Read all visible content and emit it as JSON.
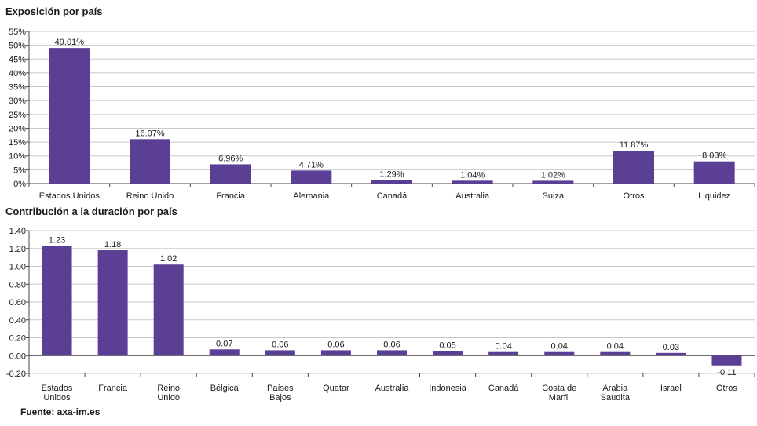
{
  "chart_data": [
    {
      "type": "bar",
      "title": "Exposición por país",
      "categories": [
        "Estados Unidos",
        "Reino Unido",
        "Francia",
        "Alemania",
        "Canadá",
        "Australia",
        "Suiza",
        "Otros",
        "Liquidez"
      ],
      "values": [
        49.01,
        16.07,
        6.96,
        4.71,
        1.29,
        1.04,
        1.02,
        11.87,
        8.03
      ],
      "value_labels": [
        "49.01%",
        "16.07%",
        "6.96%",
        "4.71%",
        "1.29%",
        "1.04%",
        "1.02%",
        "11.87%",
        "8.03%"
      ],
      "ylim": [
        0,
        55
      ],
      "yticks": [
        0,
        5,
        10,
        15,
        20,
        25,
        30,
        35,
        40,
        45,
        50,
        55
      ],
      "ytick_labels": [
        "0%",
        "5%",
        "10%",
        "15%",
        "20%",
        "25%",
        "30%",
        "35%",
        "40%",
        "45%",
        "50%",
        "55%"
      ],
      "grid": true,
      "bar_color": "#5b3f95"
    },
    {
      "type": "bar",
      "title": "Contribución a la duración por país",
      "categories": [
        "Estados Unidos",
        "Francia",
        "Reino Unido",
        "Bélgica",
        "Países Bajos",
        "Quatar",
        "Australia",
        "Indonesia",
        "Canadá",
        "Costa de Marfil",
        "Arabia Saudita",
        "Israel",
        "Otros"
      ],
      "category_lines": [
        [
          "Estados",
          "Unidos"
        ],
        [
          "Francia"
        ],
        [
          "Reino",
          "Unido"
        ],
        [
          "Bélgica"
        ],
        [
          "Países",
          "Bajos"
        ],
        [
          "Quatar"
        ],
        [
          "Australia"
        ],
        [
          "Indonesia"
        ],
        [
          "Canadá"
        ],
        [
          "Costa de",
          "Marfil"
        ],
        [
          "Arabia",
          "Saudita"
        ],
        [
          "Israel"
        ],
        [
          "Otros"
        ]
      ],
      "values": [
        1.23,
        1.18,
        1.02,
        0.07,
        0.06,
        0.06,
        0.06,
        0.05,
        0.04,
        0.04,
        0.04,
        0.03,
        -0.11
      ],
      "value_labels": [
        "1.23",
        "1.18",
        "1.02",
        "0.07",
        "0.06",
        "0.06",
        "0.06",
        "0.05",
        "0.04",
        "0.04",
        "0.04",
        "0.03",
        "-0.11"
      ],
      "ylim": [
        -0.2,
        1.4
      ],
      "yticks": [
        -0.2,
        0,
        0.2,
        0.4,
        0.6,
        0.8,
        1.0,
        1.2,
        1.4
      ],
      "ytick_labels": [
        "-0.20",
        "0.00",
        "0.20",
        "0.40",
        "0.60",
        "0.80",
        "1.00",
        "1.20",
        "1.40"
      ],
      "grid": true,
      "bar_color": "#5b3f95"
    }
  ],
  "source": "Fuente: axa-im.es"
}
